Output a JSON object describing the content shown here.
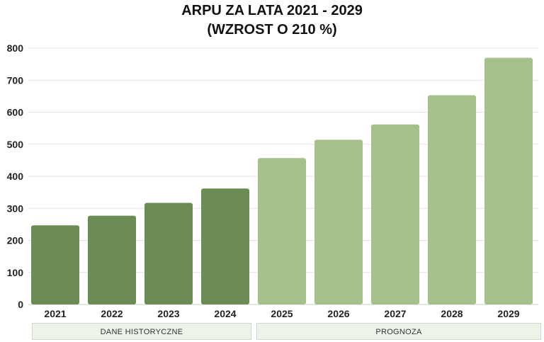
{
  "chart_data": {
    "type": "bar",
    "title_line1": "ARPU ZA LATA 2021 - 2029",
    "title_line2": "(WZROST O 210 %)",
    "categories": [
      "2021",
      "2022",
      "2023",
      "2024",
      "2025",
      "2026",
      "2027",
      "2028",
      "2029"
    ],
    "values": [
      247,
      277,
      317,
      362,
      457,
      514,
      562,
      653,
      770
    ],
    "ylim": [
      0,
      800
    ],
    "yticks": [
      0,
      100,
      200,
      300,
      400,
      500,
      600,
      700,
      800
    ],
    "grid": true,
    "groups": [
      {
        "label": "DANE HISTORYCZNE",
        "categories": [
          "2021",
          "2022",
          "2023",
          "2024"
        ],
        "color": "#6b8c54"
      },
      {
        "label": "PROGNOZA",
        "categories": [
          "2025",
          "2026",
          "2027",
          "2028",
          "2029"
        ],
        "color": "#a6c08c"
      }
    ]
  }
}
